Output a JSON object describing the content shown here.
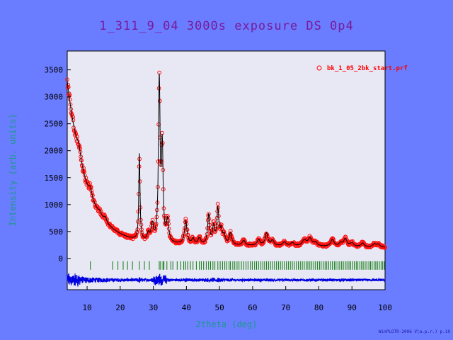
{
  "colors": {
    "background": "#6a7cff",
    "plot_bg": "#e8e8f4",
    "title": "#7a1a9a",
    "axis_text": "#000000",
    "ylabel": "#1a9a8a",
    "observed": "#ff1010",
    "calculated": "#000000",
    "difference": "#0000e0",
    "tick_marks": "#0a7a0a",
    "legend": "#ff0000"
  },
  "chart_data": {
    "type": "line",
    "title": "1_311_9_04 3000s exposure DS 0p4",
    "xlabel": "2theta (deg)",
    "ylabel": "Intensity (arb. units)",
    "xlim": [
      4,
      100
    ],
    "ylim": [
      -580,
      3850
    ],
    "xticks": [
      10,
      20,
      30,
      40,
      50,
      60,
      70,
      80,
      90,
      100
    ],
    "yticks": [
      0,
      500,
      1000,
      1500,
      2000,
      2500,
      3000,
      3500
    ],
    "grid": false,
    "legend": {
      "position": "top-right",
      "label": "bk_1_05_2bk_start.prf"
    },
    "background_curve": {
      "A": 3000,
      "decay_deg": 5.8,
      "offset": 280,
      "slope": -0.8
    },
    "peaks": [
      {
        "x": 7.5,
        "height": 200,
        "width": 0.8
      },
      {
        "x": 11.0,
        "height": 150,
        "width": 0.5
      },
      {
        "x": 13.8,
        "height": 60,
        "width": 0.5
      },
      {
        "x": 15.5,
        "height": 80,
        "width": 0.5
      },
      {
        "x": 25.8,
        "height": 1600,
        "width": 0.22
      },
      {
        "x": 28.5,
        "height": 140,
        "width": 0.4
      },
      {
        "x": 29.7,
        "height": 300,
        "width": 0.4
      },
      {
        "x": 31.8,
        "height": 2950,
        "width": 0.3
      },
      {
        "x": 32.7,
        "height": 1700,
        "width": 0.3
      },
      {
        "x": 34.3,
        "height": 400,
        "width": 0.4
      },
      {
        "x": 39.8,
        "height": 430,
        "width": 0.45
      },
      {
        "x": 42.0,
        "height": 100,
        "width": 0.4
      },
      {
        "x": 43.9,
        "height": 120,
        "width": 0.45
      },
      {
        "x": 46.7,
        "height": 540,
        "width": 0.35
      },
      {
        "x": 48.2,
        "height": 320,
        "width": 0.4
      },
      {
        "x": 49.5,
        "height": 640,
        "width": 0.35
      },
      {
        "x": 50.5,
        "height": 250,
        "width": 0.4
      },
      {
        "x": 51.4,
        "height": 160,
        "width": 0.4
      },
      {
        "x": 53.3,
        "height": 220,
        "width": 0.45
      },
      {
        "x": 57.3,
        "height": 90,
        "width": 0.5
      },
      {
        "x": 61.8,
        "height": 110,
        "width": 0.5
      },
      {
        "x": 64.2,
        "height": 230,
        "width": 0.5
      },
      {
        "x": 66.0,
        "height": 100,
        "width": 0.5
      },
      {
        "x": 69.6,
        "height": 70,
        "width": 0.6
      },
      {
        "x": 72.0,
        "height": 60,
        "width": 0.6
      },
      {
        "x": 75.6,
        "height": 110,
        "width": 0.7
      },
      {
        "x": 77.3,
        "height": 140,
        "width": 0.7
      },
      {
        "x": 79.0,
        "height": 70,
        "width": 0.6
      },
      {
        "x": 84.1,
        "height": 130,
        "width": 0.6
      },
      {
        "x": 86.6,
        "height": 60,
        "width": 0.6
      },
      {
        "x": 88.0,
        "height": 140,
        "width": 0.6
      },
      {
        "x": 90.0,
        "height": 70,
        "width": 0.6
      },
      {
        "x": 93.2,
        "height": 70,
        "width": 0.6
      },
      {
        "x": 96.8,
        "height": 60,
        "width": 0.6
      },
      {
        "x": 98.0,
        "height": 50,
        "width": 0.6
      }
    ],
    "bragg_positions": [
      11.0,
      17.7,
      19.3,
      20.9,
      22.2,
      23.7,
      25.8,
      27.3,
      28.8,
      31.8,
      32.2,
      32.9,
      33.2,
      34.1,
      35.3,
      35.9,
      37.2,
      38.3,
      39.2,
      39.8,
      40.4,
      41.2,
      42.0,
      43.0,
      43.9,
      44.5,
      45.2,
      46.0,
      46.7,
      47.3,
      48.0,
      48.6,
      49.5,
      50.2,
      50.9,
      51.6,
      52.2,
      52.9,
      53.3,
      54.0,
      54.6,
      55.3,
      55.9,
      56.6,
      57.3,
      58.0,
      58.6,
      59.3,
      59.9,
      60.6,
      61.2,
      61.8,
      62.5,
      63.1,
      63.6,
      64.2,
      64.8,
      65.4,
      66.0,
      66.6,
      67.2,
      67.8,
      68.4,
      69.0,
      69.6,
      70.2,
      70.8,
      71.4,
      72.0,
      72.6,
      73.2,
      73.8,
      74.4,
      75.0,
      75.6,
      76.2,
      76.7,
      77.3,
      77.9,
      78.5,
      79.0,
      79.6,
      80.2,
      80.7,
      81.3,
      81.9,
      82.4,
      83.0,
      83.5,
      84.1,
      84.7,
      85.2,
      85.8,
      86.3,
      86.9,
      87.4,
      88.0,
      88.5,
      89.1,
      89.6,
      90.2,
      90.7,
      91.3,
      91.8,
      92.4,
      92.9,
      93.4,
      94.0,
      94.5,
      95.1,
      95.6,
      96.1,
      96.7,
      97.2,
      97.7,
      98.3,
      98.8,
      99.3,
      99.8
    ],
    "difference_offset": -400,
    "bragg_row_y": -130
  },
  "footer": "WinPLOTR-2006 V(a.p.r.) p.10"
}
